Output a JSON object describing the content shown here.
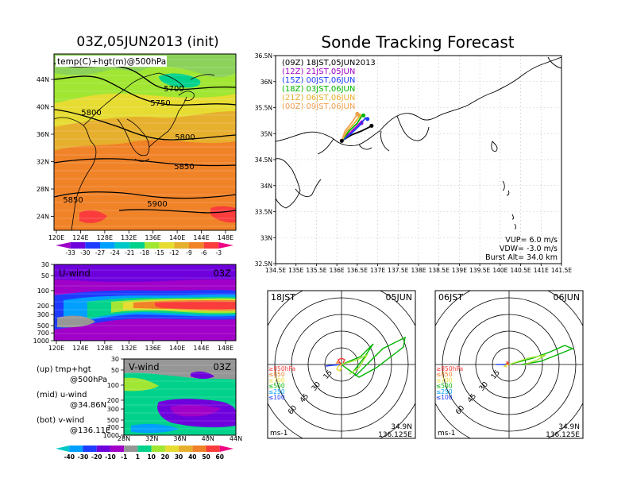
{
  "titles": {
    "left": "03Z,05JUN2013 (init)",
    "right": "Sonde Tracking Forecast"
  },
  "chart_data": [
    {
      "type": "heatmap",
      "panel": "top-left map",
      "label": "temp(C)+hgt(m)@500hPa",
      "xticks": [
        "120E",
        "124E",
        "128E",
        "132E",
        "136E",
        "140E",
        "144E",
        "148E"
      ],
      "yticks": [
        "44N",
        "40N",
        "36N",
        "32N",
        "28N",
        "24N"
      ],
      "contour_labels": [
        "5700",
        "5750",
        "5800",
        "5800",
        "5850",
        "5850",
        "5900"
      ],
      "colorbar": [
        "-33",
        "-30",
        "-27",
        "-24",
        "-21",
        "-18",
        "-15",
        "-12",
        "-9",
        "-6",
        "-3"
      ],
      "colors": [
        "#a000c8",
        "#6e00dc",
        "#1e3cff",
        "#00a0ff",
        "#00c8c8",
        "#00d28c",
        "#a0e632",
        "#e6dc32",
        "#e6af2d",
        "#f08228",
        "#fa3c3c",
        "#f00082"
      ]
    },
    {
      "type": "heatmap",
      "panel": "U-wind cross section",
      "label": "U-wind",
      "time": "03Z",
      "xticks": [
        "120E",
        "124E",
        "128E",
        "132E",
        "136E",
        "140E",
        "144E",
        "148E"
      ],
      "yticks": [
        "30",
        "50",
        "100",
        "200",
        "300",
        "500",
        "700",
        "1000"
      ]
    },
    {
      "type": "heatmap",
      "panel": "V-wind cross section",
      "label": "V-wind",
      "time": "03Z",
      "xticks": [
        "28N",
        "32N",
        "36N",
        "40N",
        "44N"
      ],
      "yticks": [
        "30",
        "50",
        "100",
        "200",
        "300",
        "500",
        "700",
        "1000"
      ],
      "colorbar": [
        "-40",
        "-30",
        "-20",
        "-10",
        "-1",
        "1",
        "10",
        "20",
        "30",
        "40",
        "50",
        "60"
      ],
      "colors": [
        "#00c8c8",
        "#00a0ff",
        "#1e3cff",
        "#6e00dc",
        "#a000c8",
        "#969696",
        "#00d28c",
        "#a0e632",
        "#e6dc32",
        "#e6af2d",
        "#f08228",
        "#fa3c3c",
        "#f00082"
      ]
    },
    {
      "type": "line",
      "panel": "trajectory map",
      "xticks": [
        "134.5E",
        "135E",
        "135.5E",
        "136E",
        "136.5E",
        "137E",
        "137.5E",
        "138E",
        "138.5E",
        "139E",
        "139.5E",
        "140E",
        "140.5E",
        "141E",
        "141.5E"
      ],
      "yticks": [
        "36.5N",
        "36N",
        "35.5N",
        "35N",
        "34.5N",
        "34N",
        "33.5N",
        "33N",
        "32.5N"
      ],
      "xlim": [
        134.5,
        141.5
      ],
      "ylim": [
        32.5,
        36.5
      ],
      "series": [
        {
          "name": "(09Z)  18JST,05JUN2013",
          "color": "#000000",
          "x": [
            136.12,
            136.35,
            136.6,
            136.78,
            136.85
          ],
          "y": [
            34.86,
            34.97,
            35.05,
            35.12,
            35.15
          ]
        },
        {
          "name": "(12Z)  21JST,05JUN",
          "color": "#a000c8",
          "x": [
            136.12,
            136.3,
            136.5,
            136.62,
            136.6
          ],
          "y": [
            34.86,
            35.0,
            35.15,
            35.25,
            35.2
          ]
        },
        {
          "name": "(15Z)  00JST,06JUN",
          "color": "#1e3cff",
          "x": [
            136.12,
            136.35,
            136.55,
            136.7,
            136.75
          ],
          "y": [
            34.86,
            35.0,
            35.15,
            35.3,
            35.28
          ]
        },
        {
          "name": "(18Z)  03JST,06JUN",
          "color": "#00b400",
          "x": [
            136.12,
            136.3,
            136.5,
            136.6,
            136.65
          ],
          "y": [
            34.86,
            35.05,
            35.2,
            35.33,
            35.35
          ]
        },
        {
          "name": "(21Z)  06JST,06JUN",
          "color": "#e6af2d",
          "x": [
            136.12,
            136.25,
            136.45,
            136.55,
            136.55
          ],
          "y": [
            34.86,
            35.05,
            35.22,
            35.33,
            35.35
          ]
        },
        {
          "name": "(00Z)  09JST,06JUN",
          "color": "#f0a050",
          "x": [
            136.12,
            136.2,
            136.4,
            136.48,
            136.5
          ],
          "y": [
            34.86,
            35.05,
            35.25,
            35.35,
            35.38
          ]
        }
      ],
      "annotations": [
        "VUP=  6.0  m/s",
        "VDW=  -3.0  m/s",
        "Burst Alt=  34.0  km"
      ]
    },
    {
      "type": "line",
      "panel": "hodograph 18JST",
      "left_label": "18JST",
      "right_label": "05JUN",
      "rings": [
        "15",
        "30",
        "45",
        "60"
      ],
      "pressure_legend": [
        "≥850hPa",
        "≤850",
        "≤700",
        "≤500",
        "≤250",
        "≤100"
      ],
      "pressure_colors": [
        "#fa3c3c",
        "#f08228",
        "#e6dc32",
        "#00b400",
        "#00a0ff",
        "#1e3cff"
      ],
      "units": "ms-1",
      "lat": "34.9N",
      "lon": "136.125E"
    },
    {
      "type": "line",
      "panel": "hodograph 06JST",
      "left_label": "06JST",
      "right_label": "06JUN",
      "rings": [
        "15",
        "30",
        "45",
        "60"
      ],
      "pressure_legend": [
        "≥850hPa",
        "≤850",
        "≤700",
        "≤500",
        "≤250",
        "≤100"
      ],
      "pressure_colors": [
        "#fa3c3c",
        "#f08228",
        "#e6dc32",
        "#00b400",
        "#00a0ff",
        "#1e3cff"
      ],
      "units": "ms-1",
      "lat": "34.9N",
      "lon": "136.125E"
    }
  ],
  "side_notes": {
    "line1": "(up)  tmp+hgt",
    "line2": "@500hPa",
    "line3": "(mid)  u-wind",
    "line4": "@34.86N",
    "line5": "(bot)  v-wind",
    "line6": "@136.11E"
  }
}
